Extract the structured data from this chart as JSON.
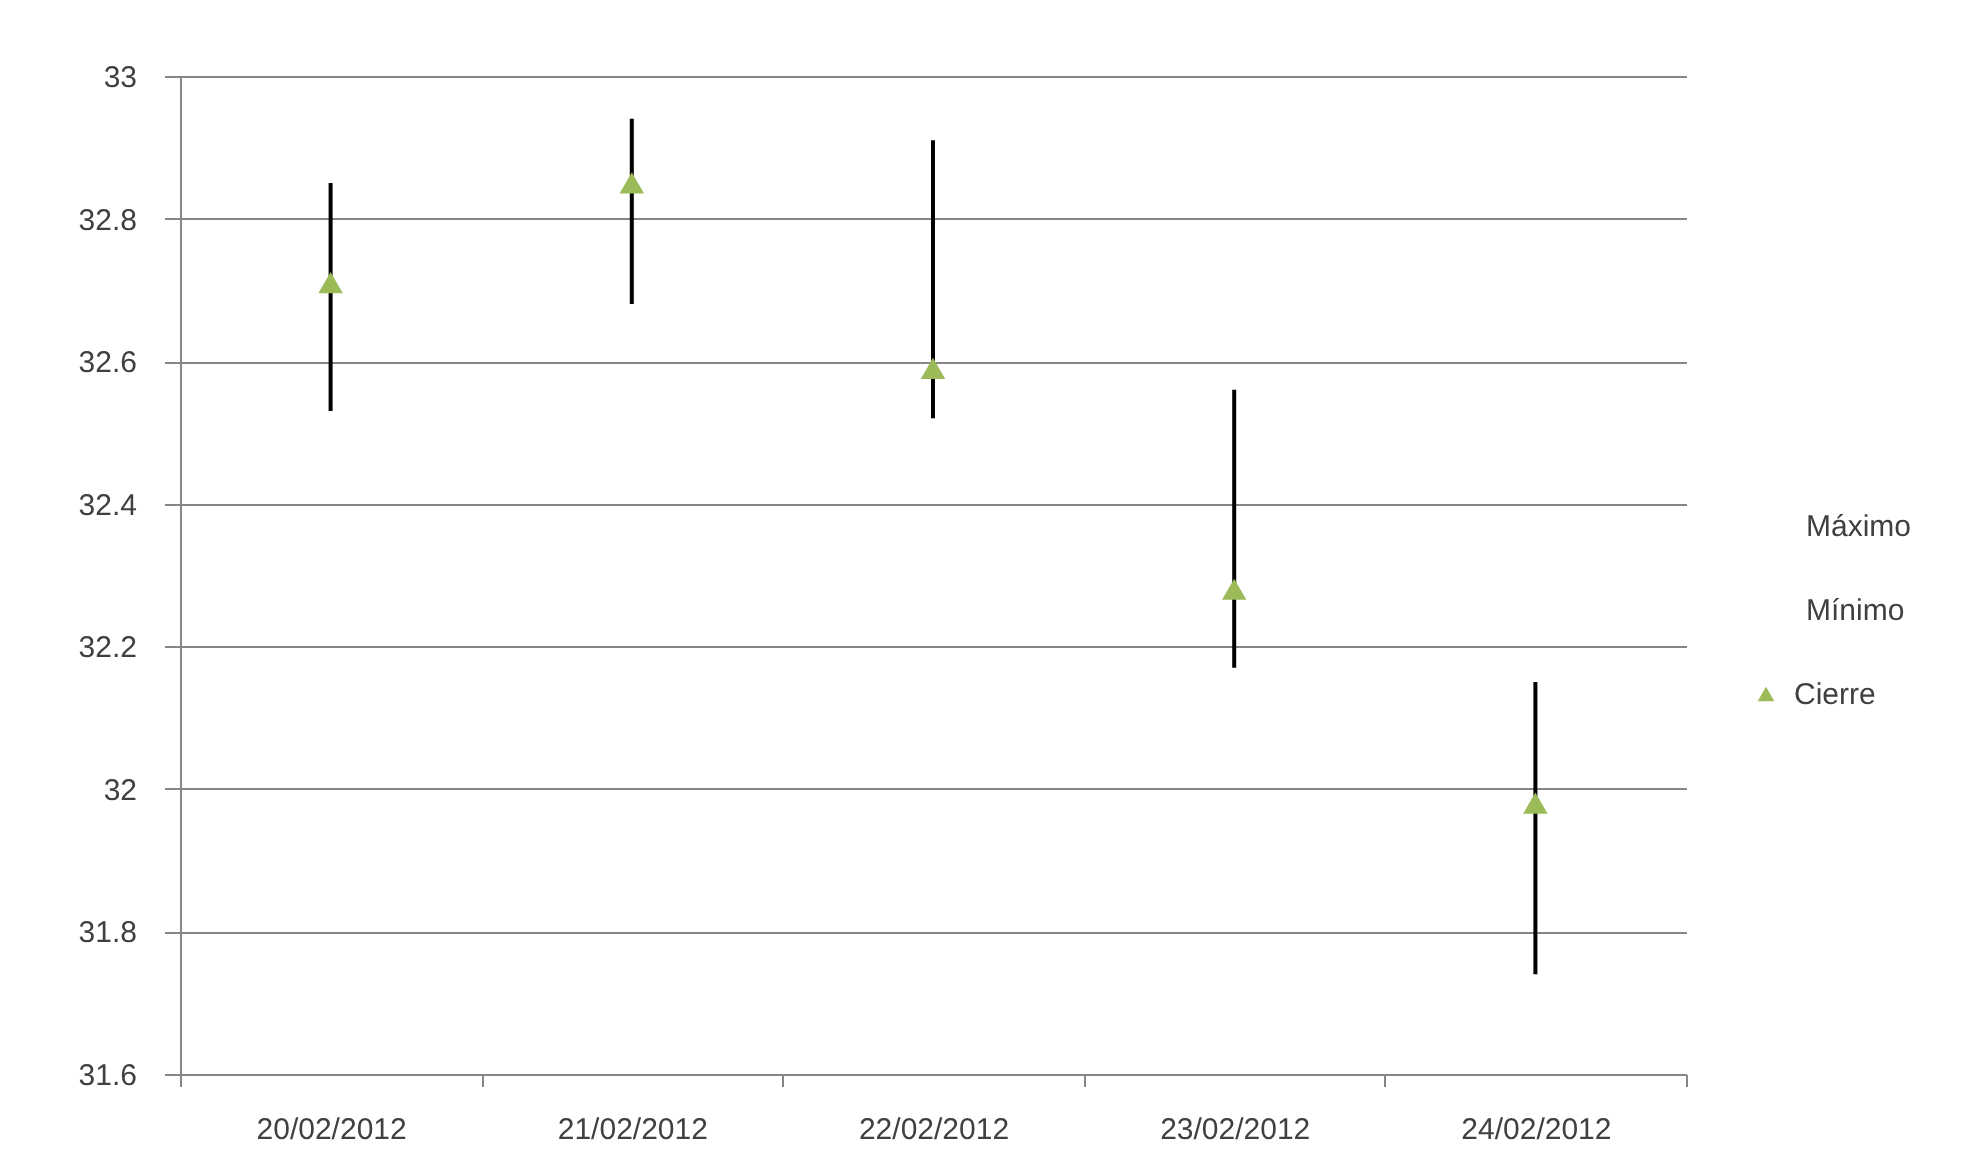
{
  "chart_data": {
    "type": "scatter",
    "categories": [
      "20/02/2012",
      "21/02/2012",
      "22/02/2012",
      "23/02/2012",
      "24/02/2012"
    ],
    "series": [
      {
        "name": "Cierre",
        "marker": "triangle",
        "color": "#9bbb59",
        "values": [
          32.71,
          32.85,
          32.59,
          32.28,
          31.98
        ],
        "errors": [
          [
            32.53,
            32.85
          ],
          [
            32.68,
            32.94
          ],
          [
            32.52,
            32.91
          ],
          [
            32.17,
            32.56
          ],
          [
            31.74,
            32.15
          ]
        ]
      }
    ],
    "annotations": [
      "Máximo",
      "Mínimo"
    ],
    "ylim": [
      31.6,
      33
    ],
    "yticks": [
      31.6,
      31.8,
      32,
      32.2,
      32.4,
      32.6,
      32.8,
      33
    ],
    "grid": "y",
    "legend": "right"
  }
}
